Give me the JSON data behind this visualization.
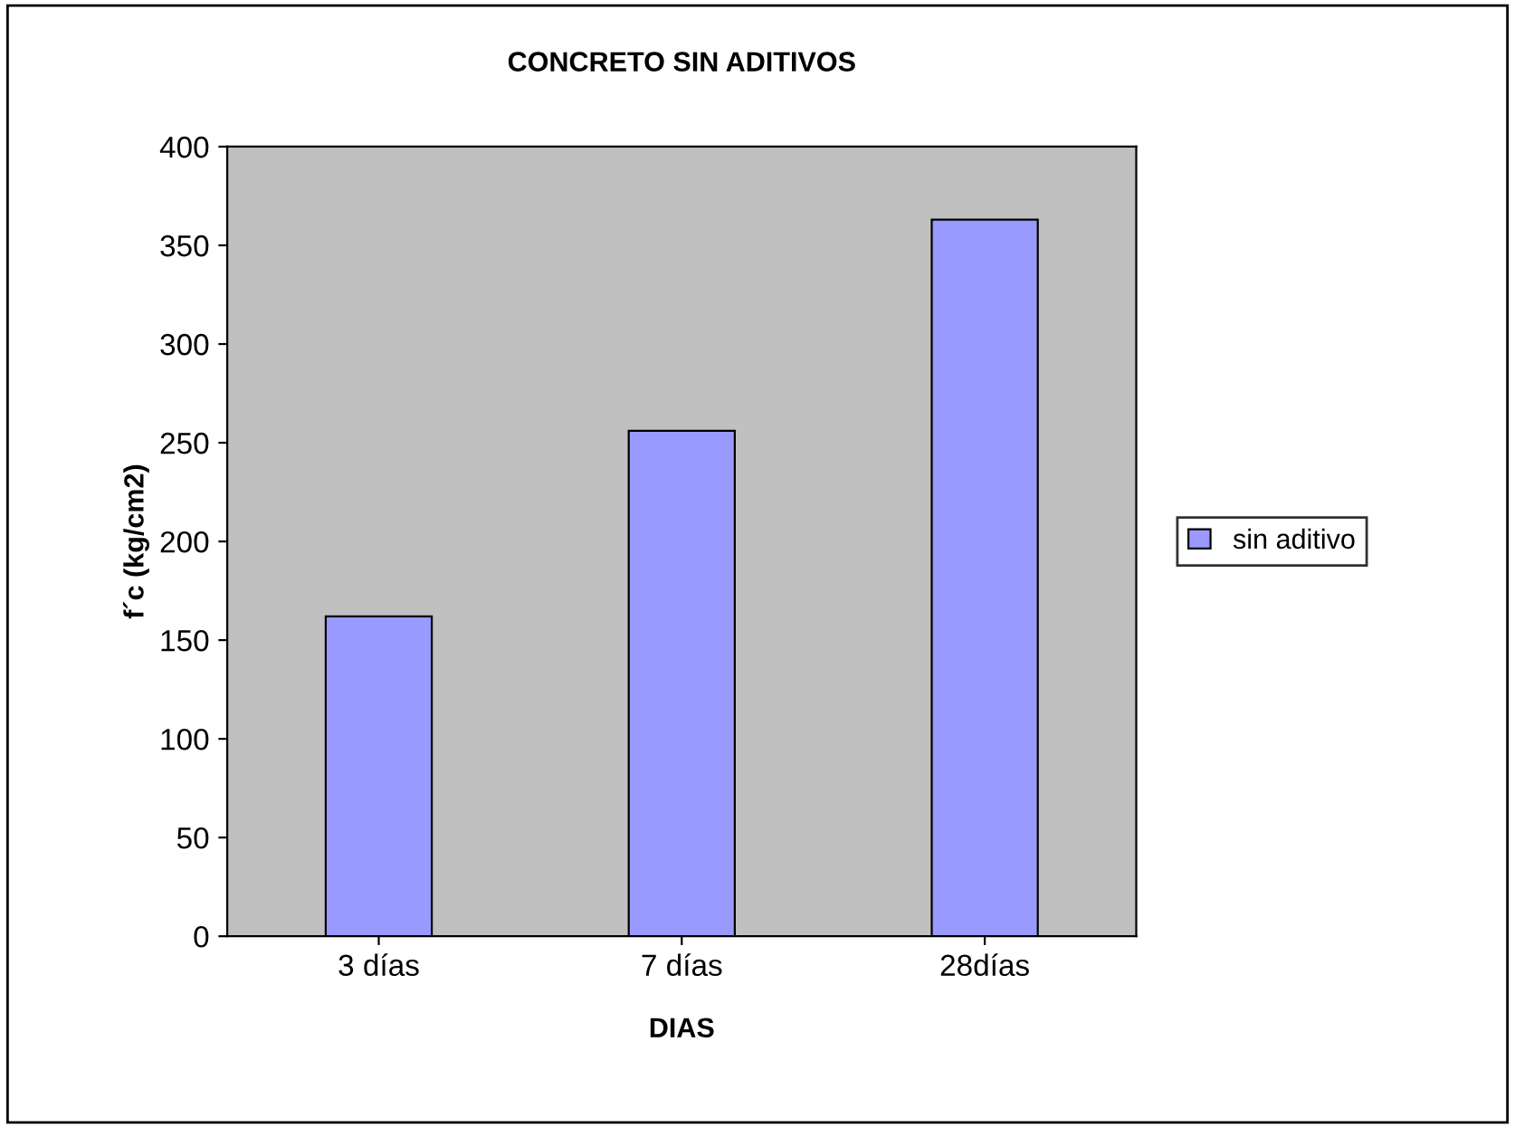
{
  "chart_data": {
    "type": "bar",
    "title": "CONCRETO SIN ADITIVOS",
    "xlabel": "DIAS",
    "ylabel": "f´c (kg/cm2)",
    "categories": [
      "3 días",
      "7 días",
      "28días"
    ],
    "series": [
      {
        "name": "sin aditivo",
        "color": "#9999ff",
        "values": [
          162,
          256,
          363
        ]
      }
    ],
    "ylim": [
      0,
      400
    ],
    "yticks": [
      0,
      50,
      100,
      150,
      200,
      250,
      300,
      350,
      400
    ],
    "grid": false,
    "legend": "right"
  }
}
